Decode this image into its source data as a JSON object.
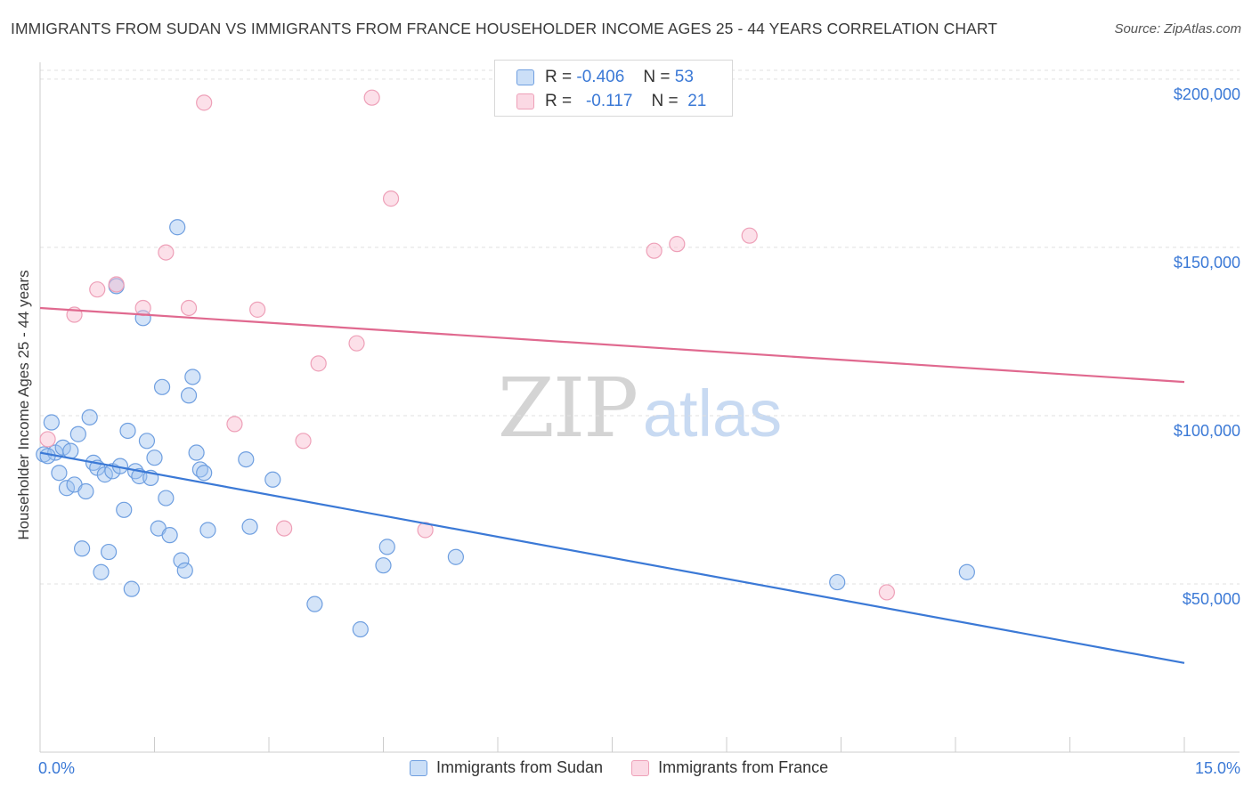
{
  "chart_data": {
    "type": "scatter",
    "title": "IMMIGRANTS FROM SUDAN VS IMMIGRANTS FROM FRANCE HOUSEHOLDER INCOME AGES 25 - 44 YEARS CORRELATION CHART",
    "source": "Source: ZipAtlas.com",
    "xlabel": "",
    "ylabel": "Householder Income Ages 25 - 44 years",
    "xlim": [
      0,
      15
    ],
    "ylim": [
      0,
      205000
    ],
    "x_tick_labels": {
      "min": "0.0%",
      "max": "15.0%"
    },
    "y_ticks": [
      {
        "value": 50000,
        "label": "$50,000"
      },
      {
        "value": 100000,
        "label": "$100,000"
      },
      {
        "value": 150000,
        "label": "$150,000"
      },
      {
        "value": 200000,
        "label": "$200,000"
      }
    ],
    "watermark": {
      "zip": "ZIP",
      "atlas": "atlas"
    },
    "legend": [
      {
        "r_label": "R =",
        "r_value": "-0.406",
        "n_label": "N =",
        "n_value": "53"
      },
      {
        "r_label": "R =",
        "r_value": "-0.117",
        "n_label": "N =",
        "n_value": "21"
      }
    ],
    "series": [
      {
        "name": "Immigrants from Sudan",
        "color": "#3b79d6",
        "fill": "rgba(160,196,240,0.45)",
        "stroke": "#6f9fe0",
        "trend": {
          "x": [
            0,
            15
          ],
          "y": [
            89000,
            26500
          ]
        },
        "points": [
          [
            0.05,
            88500
          ],
          [
            0.15,
            98000
          ],
          [
            0.2,
            89000
          ],
          [
            0.25,
            83000
          ],
          [
            0.3,
            90500
          ],
          [
            0.35,
            78500
          ],
          [
            0.4,
            89500
          ],
          [
            0.45,
            79500
          ],
          [
            0.5,
            94500
          ],
          [
            0.55,
            60500
          ],
          [
            0.6,
            77500
          ],
          [
            0.65,
            99500
          ],
          [
            0.7,
            86000
          ],
          [
            0.75,
            84500
          ],
          [
            0.8,
            53500
          ],
          [
            0.85,
            82500
          ],
          [
            0.9,
            59500
          ],
          [
            0.95,
            83500
          ],
          [
            1.0,
            138500
          ],
          [
            1.05,
            85000
          ],
          [
            1.1,
            72000
          ],
          [
            1.15,
            95500
          ],
          [
            1.2,
            48500
          ],
          [
            1.25,
            83500
          ],
          [
            1.3,
            82000
          ],
          [
            1.35,
            129000
          ],
          [
            1.4,
            92500
          ],
          [
            1.45,
            81500
          ],
          [
            1.5,
            87500
          ],
          [
            1.55,
            66500
          ],
          [
            1.6,
            108500
          ],
          [
            1.65,
            75500
          ],
          [
            1.7,
            64500
          ],
          [
            1.8,
            156000
          ],
          [
            1.85,
            57000
          ],
          [
            1.9,
            54000
          ],
          [
            1.95,
            106000
          ],
          [
            2.0,
            111500
          ],
          [
            2.05,
            89000
          ],
          [
            2.1,
            84000
          ],
          [
            2.15,
            83000
          ],
          [
            2.2,
            66000
          ],
          [
            2.7,
            87000
          ],
          [
            2.75,
            67000
          ],
          [
            3.05,
            81000
          ],
          [
            3.6,
            44000
          ],
          [
            4.2,
            36500
          ],
          [
            4.5,
            55500
          ],
          [
            4.55,
            61000
          ],
          [
            5.45,
            58000
          ],
          [
            10.45,
            50500
          ],
          [
            12.15,
            53500
          ],
          [
            0.1,
            88000
          ]
        ]
      },
      {
        "name": "Immigrants from France",
        "color": "#e0698f",
        "fill": "rgba(248,186,206,0.45)",
        "stroke": "#eea0b8",
        "trend": {
          "x": [
            0,
            15
          ],
          "y": [
            132000,
            110000
          ]
        },
        "points": [
          [
            0.1,
            93000
          ],
          [
            0.45,
            130000
          ],
          [
            0.75,
            137500
          ],
          [
            1.0,
            139000
          ],
          [
            1.35,
            132000
          ],
          [
            1.65,
            148500
          ],
          [
            1.95,
            132000
          ],
          [
            2.15,
            193000
          ],
          [
            2.55,
            97500
          ],
          [
            2.85,
            131500
          ],
          [
            3.2,
            66500
          ],
          [
            3.45,
            92500
          ],
          [
            3.65,
            115500
          ],
          [
            4.15,
            121500
          ],
          [
            4.35,
            194500
          ],
          [
            4.6,
            164500
          ],
          [
            5.05,
            66000
          ],
          [
            8.05,
            149000
          ],
          [
            8.35,
            151000
          ],
          [
            9.3,
            153500
          ],
          [
            11.1,
            47500
          ]
        ]
      }
    ]
  }
}
